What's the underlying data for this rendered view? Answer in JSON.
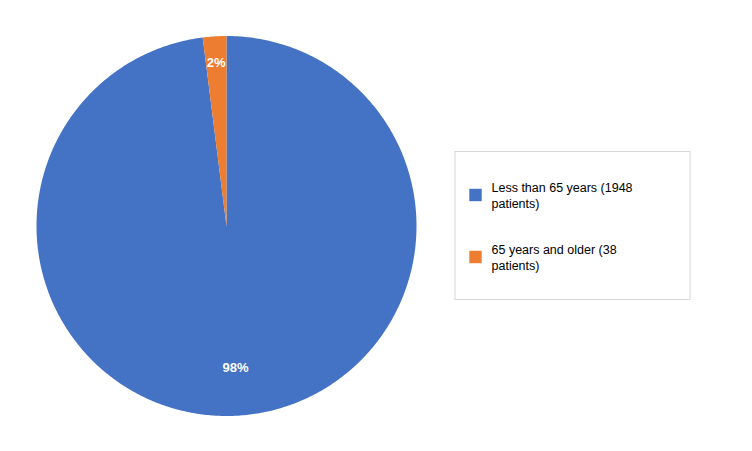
{
  "chart_data": {
    "type": "pie",
    "categories": [
      "Less than 65 years (1948\npatients)",
      "65 years and older (38\npatients)"
    ],
    "values": [
      98,
      2
    ],
    "value_labels": [
      "98%",
      "2%"
    ],
    "colors": [
      "#4472C4",
      "#ED7D31"
    ],
    "data_labels": true,
    "legend": "right"
  }
}
